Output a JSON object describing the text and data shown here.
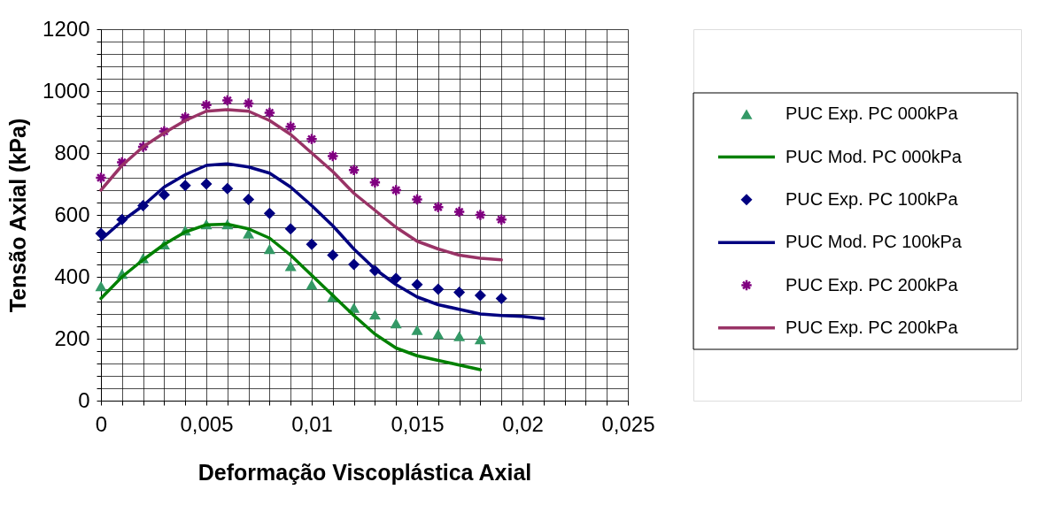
{
  "chart_data": {
    "type": "scatter",
    "xlabel": "Deformação Viscoplástica Axial",
    "ylabel": "Tensão Axial (kPa)",
    "xlim": [
      0,
      0.025
    ],
    "ylim": [
      0,
      1200
    ],
    "xticks": [
      0,
      {
        "value": 0.001,
        "label": null
      },
      {
        "value": 0.002,
        "label": null
      },
      {
        "value": 0.003,
        "label": null
      },
      {
        "value": 0.004,
        "label": null
      },
      {
        "value": 0.005,
        "label": "0,005"
      },
      {
        "value": 0.006,
        "label": null
      },
      {
        "value": 0.007,
        "label": null
      },
      {
        "value": 0.008,
        "label": null
      },
      {
        "value": 0.009,
        "label": null
      },
      {
        "value": 0.01,
        "label": "0,01"
      },
      {
        "value": 0.011,
        "label": null
      },
      {
        "value": 0.012,
        "label": null
      },
      {
        "value": 0.013,
        "label": null
      },
      {
        "value": 0.014,
        "label": null
      },
      {
        "value": 0.015,
        "label": "0,015"
      },
      {
        "value": 0.016,
        "label": null
      },
      {
        "value": 0.017,
        "label": null
      },
      {
        "value": 0.018,
        "label": null
      },
      {
        "value": 0.019,
        "label": null
      },
      {
        "value": 0.02,
        "label": "0,02"
      },
      {
        "value": 0.021,
        "label": null
      },
      {
        "value": 0.022,
        "label": null
      },
      {
        "value": 0.023,
        "label": null
      },
      {
        "value": 0.024,
        "label": null
      },
      {
        "value": 0.025,
        "label": "0,025"
      }
    ],
    "yticks": [
      0,
      {
        "value": 40,
        "label": null
      },
      {
        "value": 80,
        "label": null
      },
      {
        "value": 120,
        "label": null
      },
      {
        "value": 160,
        "label": null
      },
      200,
      {
        "value": 240,
        "label": null
      },
      {
        "value": 280,
        "label": null
      },
      {
        "value": 320,
        "label": null
      },
      {
        "value": 360,
        "label": null
      },
      400,
      {
        "value": 440,
        "label": null
      },
      {
        "value": 480,
        "label": null
      },
      {
        "value": 520,
        "label": null
      },
      {
        "value": 560,
        "label": null
      },
      600,
      {
        "value": 640,
        "label": null
      },
      {
        "value": 680,
        "label": null
      },
      {
        "value": 720,
        "label": null
      },
      {
        "value": 760,
        "label": null
      },
      800,
      {
        "value": 840,
        "label": null
      },
      {
        "value": 880,
        "label": null
      },
      {
        "value": 920,
        "label": null
      },
      {
        "value": 960,
        "label": null
      },
      1000,
      {
        "value": 1040,
        "label": null
      },
      {
        "value": 1080,
        "label": null
      },
      {
        "value": 1120,
        "label": null
      },
      {
        "value": 1160,
        "label": null
      },
      1200
    ],
    "grid": true,
    "legend": "right",
    "series": [
      {
        "name": "PUC Exp. PC 000kPa",
        "type": "scatter",
        "marker": "triangle",
        "color": "#339966",
        "x": [
          0,
          0.001,
          0.002,
          0.003,
          0.004,
          0.005,
          0.006,
          0.007,
          0.008,
          0.009,
          0.01,
          0.011,
          0.012,
          0.013,
          0.014,
          0.015,
          0.016,
          0.017,
          0.018
        ],
        "values": [
          370,
          410,
          460,
          505,
          550,
          570,
          570,
          540,
          490,
          435,
          375,
          335,
          300,
          278,
          250,
          228,
          215,
          208,
          198
        ]
      },
      {
        "name": "PUC Mod. PC 000kPa",
        "type": "line",
        "marker": "none",
        "line_style": "solid",
        "color": "#008000",
        "x": [
          0,
          0.001,
          0.002,
          0.003,
          0.004,
          0.005,
          0.006,
          0.007,
          0.008,
          0.009,
          0.01,
          0.011,
          0.012,
          0.013,
          0.014,
          0.015,
          0.016,
          0.017,
          0.018
        ],
        "values": [
          330,
          400,
          455,
          505,
          545,
          568,
          570,
          555,
          525,
          470,
          405,
          340,
          275,
          215,
          170,
          145,
          130,
          115,
          100
        ]
      },
      {
        "name": "PUC Exp. PC 100kPa",
        "type": "scatter",
        "marker": "diamond",
        "color": "#000080",
        "x": [
          0,
          0.001,
          0.002,
          0.003,
          0.004,
          0.005,
          0.006,
          0.007,
          0.008,
          0.009,
          0.01,
          0.011,
          0.012,
          0.013,
          0.014,
          0.015,
          0.016,
          0.017,
          0.018,
          0.019
        ],
        "values": [
          540,
          585,
          630,
          665,
          695,
          700,
          685,
          650,
          605,
          555,
          505,
          470,
          440,
          420,
          395,
          375,
          360,
          350,
          340,
          330
        ]
      },
      {
        "name": "PUC Mod. PC 100kPa",
        "type": "line",
        "marker": "none",
        "line_style": "solid",
        "color": "#000080",
        "x": [
          0,
          0.001,
          0.002,
          0.003,
          0.004,
          0.005,
          0.006,
          0.007,
          0.008,
          0.009,
          0.01,
          0.011,
          0.012,
          0.013,
          0.014,
          0.015,
          0.016,
          0.017,
          0.018,
          0.019,
          0.02,
          0.021
        ],
        "values": [
          520,
          580,
          630,
          690,
          730,
          760,
          765,
          755,
          735,
          690,
          630,
          565,
          490,
          425,
          375,
          335,
          310,
          295,
          280,
          275,
          272,
          265
        ]
      },
      {
        "name": "PUC Exp. PC 200kPa",
        "type": "scatter",
        "marker": "cross",
        "color": "#800080",
        "x": [
          0,
          0.001,
          0.002,
          0.003,
          0.004,
          0.005,
          0.006,
          0.007,
          0.008,
          0.009,
          0.01,
          0.011,
          0.012,
          0.013,
          0.014,
          0.015,
          0.016,
          0.017,
          0.018,
          0.019
        ],
        "values": [
          720,
          770,
          820,
          870,
          915,
          955,
          970,
          960,
          930,
          885,
          845,
          790,
          745,
          705,
          680,
          650,
          625,
          610,
          600,
          585
        ]
      },
      {
        "name": "PUC Exp. PC 200kPa",
        "type": "line",
        "marker": "none",
        "line_style": "solid",
        "color": "#993366",
        "x": [
          0,
          0.001,
          0.002,
          0.003,
          0.004,
          0.005,
          0.006,
          0.007,
          0.008,
          0.009,
          0.01,
          0.011,
          0.012,
          0.013,
          0.014,
          0.015,
          0.016,
          0.017,
          0.018,
          0.019
        ],
        "values": [
          680,
          760,
          820,
          865,
          905,
          935,
          940,
          935,
          905,
          860,
          800,
          740,
          670,
          615,
          560,
          515,
          490,
          470,
          460,
          455
        ]
      }
    ]
  }
}
